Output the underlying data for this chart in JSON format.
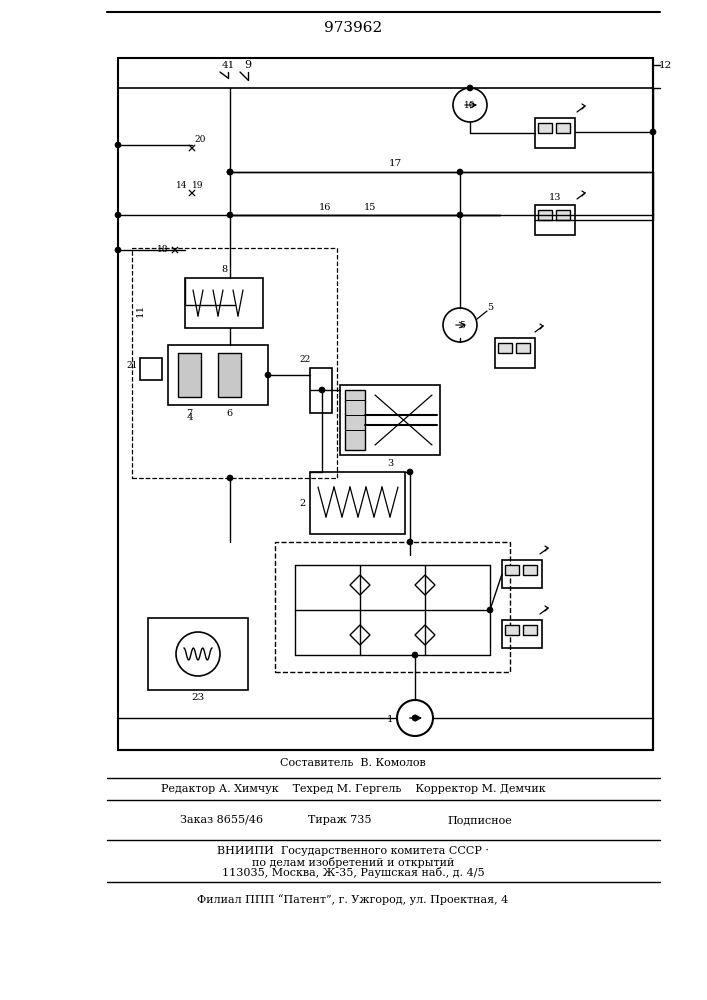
{
  "title": "973962",
  "bg_color": "#ffffff",
  "line_color": "#000000",
  "text_color": "#000000",
  "footer": {
    "line1": "Составитель  В. Комолов",
    "line2": "Редактор А. Химчук    Техред М. Гергель    Корректор М. Демчик",
    "line3": "Заказ 8655/46       Тираж 735          Подписное",
    "line4": "ВНИИПИ  Государственного комитета СССР ·",
    "line5": "по делам изобретений и открытий",
    "line6": "113035, Москва, Ж-35, Раушская наб., д. 4/5",
    "line7": "Филиал ППП “Патент”, г. Ужгород, ул. Проектная, 4"
  }
}
